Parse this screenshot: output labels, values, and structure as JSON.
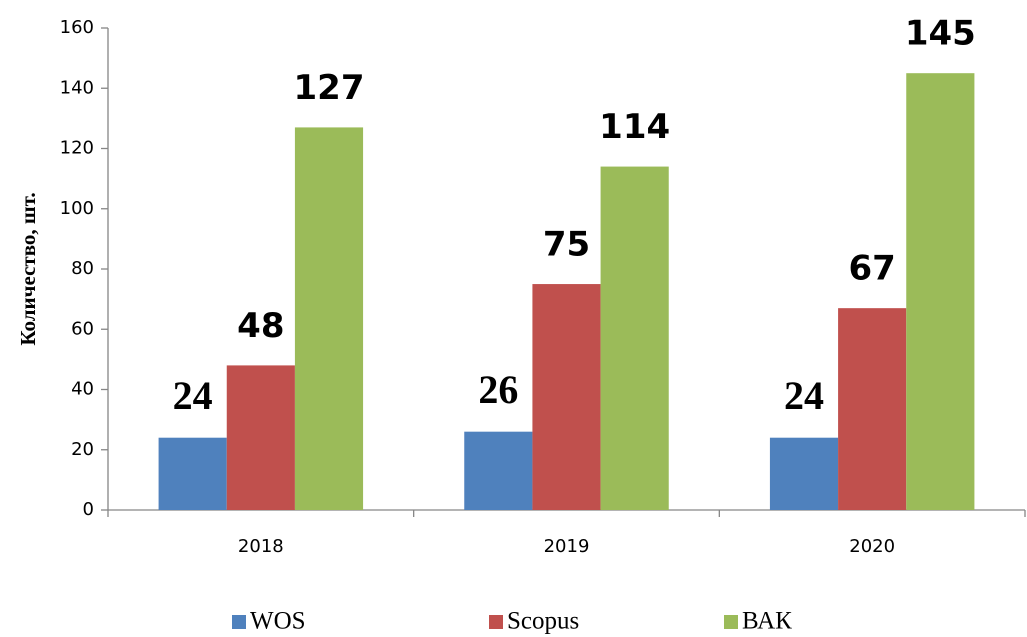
{
  "chart_data": {
    "type": "bar",
    "ylabel": "Количество, шт.",
    "categories": [
      "2018",
      "2019",
      "2020"
    ],
    "series": [
      {
        "name": "WOS",
        "color": "#4f81bd",
        "values": [
          24,
          26,
          24
        ]
      },
      {
        "name": "Scopus",
        "color": "#c0504d",
        "values": [
          48,
          75,
          67
        ]
      },
      {
        "name": "ВАК",
        "color": "#9bbb59",
        "values": [
          127,
          114,
          145
        ]
      }
    ],
    "ylim": [
      0,
      160
    ],
    "yticks": [
      0,
      20,
      40,
      60,
      80,
      100,
      120,
      140,
      160
    ],
    "legend": "bottom",
    "grid": false
  }
}
